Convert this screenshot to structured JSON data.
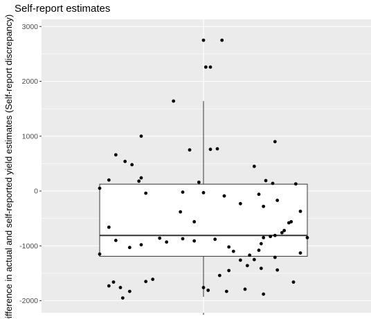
{
  "chart_data": {
    "type": "box",
    "title": "Self-report estimates",
    "xlabel": "",
    "ylabel": "Difference in actual and self-reported yield estimates (Self-report discrepancy)",
    "ylim": [
      -2220,
      3130
    ],
    "yticks": [
      -2000,
      -1000,
      0,
      1000,
      2000,
      3000
    ],
    "grid": true,
    "background": "#ebebeb",
    "gridline_color": "#ffffff",
    "box": {
      "q1": -1190,
      "median": -810,
      "q3": 125,
      "whisker_low": -1930,
      "whisker_high": 1640,
      "fill": "#ffffff",
      "stroke": "#333333"
    },
    "points_x_range": [
      -0.45,
      0.45
    ],
    "points": [
      {
        "x": 0.0,
        "y": 2750
      },
      {
        "x": 0.08,
        "y": 2750
      },
      {
        "x": 0.01,
        "y": 2260
      },
      {
        "x": 0.03,
        "y": 2260
      },
      {
        "x": -0.13,
        "y": 1640
      },
      {
        "x": -0.27,
        "y": 1000
      },
      {
        "x": 0.31,
        "y": 900
      },
      {
        "x": -0.06,
        "y": 750
      },
      {
        "x": 0.03,
        "y": 760
      },
      {
        "x": 0.06,
        "y": 770
      },
      {
        "x": -0.38,
        "y": 660
      },
      {
        "x": -0.34,
        "y": 540
      },
      {
        "x": -0.31,
        "y": 480
      },
      {
        "x": 0.22,
        "y": 450
      },
      {
        "x": -0.41,
        "y": 200
      },
      {
        "x": -0.27,
        "y": 240
      },
      {
        "x": -0.28,
        "y": 180
      },
      {
        "x": -0.02,
        "y": 160
      },
      {
        "x": 0.27,
        "y": 190
      },
      {
        "x": 0.3,
        "y": 140
      },
      {
        "x": 0.4,
        "y": 130
      },
      {
        "x": -0.45,
        "y": 50
      },
      {
        "x": -0.25,
        "y": -40
      },
      {
        "x": -0.09,
        "y": -20
      },
      {
        "x": 0.0,
        "y": -30
      },
      {
        "x": 0.24,
        "y": -60
      },
      {
        "x": 0.09,
        "y": -90
      },
      {
        "x": 0.32,
        "y": -170
      },
      {
        "x": 0.16,
        "y": -230
      },
      {
        "x": 0.26,
        "y": -280
      },
      {
        "x": -0.1,
        "y": -380
      },
      {
        "x": 0.42,
        "y": -370
      },
      {
        "x": 0.38,
        "y": -560
      },
      {
        "x": 0.37,
        "y": -580
      },
      {
        "x": -0.04,
        "y": -560
      },
      {
        "x": -0.41,
        "y": -660
      },
      {
        "x": 0.35,
        "y": -720
      },
      {
        "x": 0.34,
        "y": -760
      },
      {
        "x": 0.31,
        "y": -810
      },
      {
        "x": 0.29,
        "y": -830
      },
      {
        "x": -0.38,
        "y": -900
      },
      {
        "x": -0.19,
        "y": -860
      },
      {
        "x": -0.09,
        "y": -870
      },
      {
        "x": -0.16,
        "y": -930
      },
      {
        "x": -0.04,
        "y": -910
      },
      {
        "x": 0.05,
        "y": -880
      },
      {
        "x": 0.26,
        "y": -850
      },
      {
        "x": 0.45,
        "y": -850
      },
      {
        "x": -0.27,
        "y": -980
      },
      {
        "x": -0.32,
        "y": -1030
      },
      {
        "x": 0.11,
        "y": -1020
      },
      {
        "x": 0.13,
        "y": -1100
      },
      {
        "x": 0.25,
        "y": -960
      },
      {
        "x": 0.24,
        "y": -1080
      },
      {
        "x": -0.45,
        "y": -1150
      },
      {
        "x": 0.42,
        "y": -1130
      },
      {
        "x": 0.2,
        "y": -1170
      },
      {
        "x": 0.16,
        "y": -1260
      },
      {
        "x": 0.31,
        "y": -1210
      },
      {
        "x": 0.22,
        "y": -1250
      },
      {
        "x": 0.19,
        "y": -1360
      },
      {
        "x": 0.25,
        "y": -1410
      },
      {
        "x": 0.11,
        "y": -1450
      },
      {
        "x": 0.32,
        "y": -1440
      },
      {
        "x": 0.07,
        "y": -1540
      },
      {
        "x": -0.22,
        "y": -1610
      },
      {
        "x": -0.25,
        "y": -1650
      },
      {
        "x": -0.39,
        "y": -1660
      },
      {
        "x": 0.39,
        "y": -1660
      },
      {
        "x": -0.41,
        "y": -1730
      },
      {
        "x": -0.36,
        "y": -1760
      },
      {
        "x": 0.0,
        "y": -1760
      },
      {
        "x": 0.02,
        "y": -1810
      },
      {
        "x": 0.18,
        "y": -1790
      },
      {
        "x": 0.1,
        "y": -1830
      },
      {
        "x": -0.32,
        "y": -1830
      },
      {
        "x": 0.26,
        "y": -1880
      },
      {
        "x": -0.35,
        "y": -1950
      }
    ]
  }
}
